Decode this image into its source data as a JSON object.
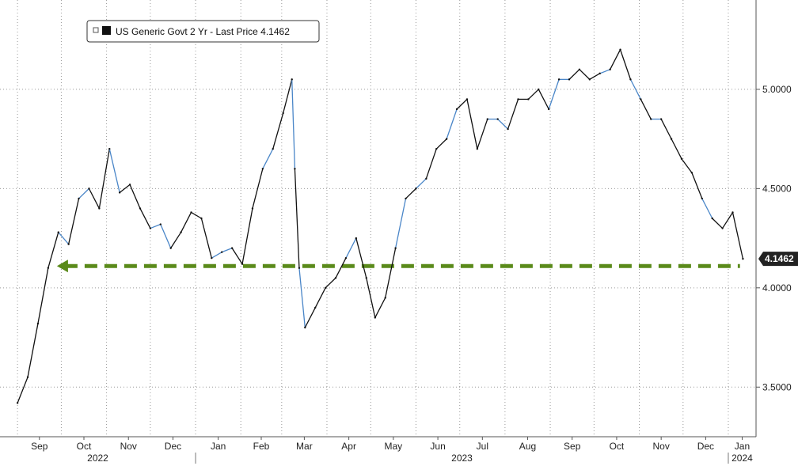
{
  "chart_data": {
    "type": "line",
    "title": "",
    "xlabel": "",
    "ylabel": "",
    "ylim": [
      3.25,
      5.45
    ],
    "yticks": [
      3.5,
      4.0,
      4.5,
      5.0
    ],
    "ytick_labels": [
      "3.5000",
      "4.0000",
      "4.5000",
      "5.0000"
    ],
    "y_axis_side": "right",
    "grid": true,
    "grid_style": "dotted",
    "legend": {
      "placement": "top-left",
      "entries": [
        "US Generic Govt 2 Yr - Last Price 4.1462"
      ]
    },
    "x_month_labels": [
      "Sep",
      "Oct",
      "Nov",
      "Dec",
      "Jan",
      "Feb",
      "Mar",
      "Apr",
      "May",
      "Jun",
      "Jul",
      "Aug",
      "Sep",
      "Oct",
      "Nov",
      "Dec",
      "Jan"
    ],
    "x_year_labels": [
      "2022",
      "2023",
      "2024"
    ],
    "last_value": 4.1462,
    "last_value_label": "4.1462",
    "reference_line": {
      "value": 4.11,
      "style": "dashed",
      "color": "#5a8a1a"
    },
    "series": [
      {
        "name": "US Generic Govt 2 Yr - Last Price",
        "color": "#111111",
        "highlight_color": "#4a86c8",
        "x": [
          "2022-09-01",
          "2022-09-08",
          "2022-09-15",
          "2022-09-22",
          "2022-09-29",
          "2022-10-06",
          "2022-10-13",
          "2022-10-20",
          "2022-10-27",
          "2022-11-03",
          "2022-11-10",
          "2022-11-17",
          "2022-11-24",
          "2022-12-01",
          "2022-12-08",
          "2022-12-15",
          "2022-12-22",
          "2022-12-29",
          "2023-01-05",
          "2023-01-12",
          "2023-01-19",
          "2023-01-26",
          "2023-02-02",
          "2023-02-09",
          "2023-02-16",
          "2023-02-23",
          "2023-03-02",
          "2023-03-08",
          "2023-03-10",
          "2023-03-13",
          "2023-03-17",
          "2023-03-24",
          "2023-03-31",
          "2023-04-07",
          "2023-04-14",
          "2023-04-21",
          "2023-04-28",
          "2023-05-04",
          "2023-05-11",
          "2023-05-18",
          "2023-05-25",
          "2023-06-01",
          "2023-06-08",
          "2023-06-15",
          "2023-06-22",
          "2023-06-29",
          "2023-07-06",
          "2023-07-13",
          "2023-07-20",
          "2023-07-27",
          "2023-08-03",
          "2023-08-10",
          "2023-08-17",
          "2023-08-24",
          "2023-08-31",
          "2023-09-07",
          "2023-09-14",
          "2023-09-21",
          "2023-09-28",
          "2023-10-05",
          "2023-10-12",
          "2023-10-19",
          "2023-10-26",
          "2023-11-02",
          "2023-11-09",
          "2023-11-16",
          "2023-11-23",
          "2023-11-30",
          "2023-12-07",
          "2023-12-14",
          "2023-12-21",
          "2023-12-28",
          "2024-01-04",
          "2024-01-11"
        ],
        "values": [
          3.42,
          3.55,
          3.82,
          4.1,
          4.28,
          4.22,
          4.45,
          4.5,
          4.4,
          4.7,
          4.48,
          4.52,
          4.4,
          4.3,
          4.32,
          4.2,
          4.28,
          4.38,
          4.35,
          4.15,
          4.18,
          4.2,
          4.12,
          4.4,
          4.6,
          4.7,
          4.88,
          5.05,
          4.6,
          4.1,
          3.8,
          3.9,
          4.0,
          4.05,
          4.15,
          4.25,
          4.05,
          3.85,
          3.95,
          4.2,
          4.45,
          4.5,
          4.55,
          4.7,
          4.75,
          4.9,
          4.95,
          4.7,
          4.85,
          4.85,
          4.8,
          4.95,
          4.95,
          5.0,
          4.9,
          5.05,
          5.05,
          5.1,
          5.05,
          5.08,
          5.1,
          5.2,
          5.05,
          4.95,
          4.85,
          4.85,
          4.75,
          4.65,
          4.58,
          4.45,
          4.35,
          4.3,
          4.38,
          4.1462
        ]
      }
    ]
  }
}
